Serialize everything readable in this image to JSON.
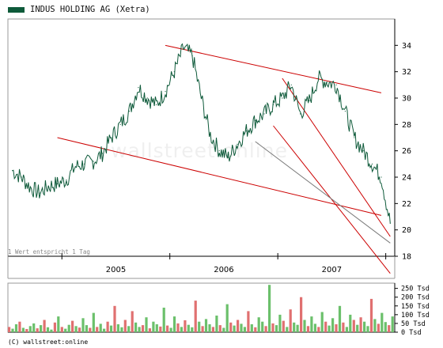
{
  "legend": {
    "label": "INDUS HOLDING AG (Xetra)",
    "color": "#0e5a3a"
  },
  "footnote": "1 Wert entspricht 1 Tag",
  "watermark": "wallstreet online",
  "copyright": "(C) wallstreet:online",
  "chart_data": [
    {
      "type": "line",
      "title": "INDUS HOLDING AG (Xetra)",
      "series": [
        {
          "name": "INDUS HOLDING AG (Xetra)",
          "x": [
            "2004-07",
            "2004-08",
            "2004-09",
            "2004-10",
            "2004-11",
            "2004-12",
            "2005-01",
            "2005-02",
            "2005-03",
            "2005-04",
            "2005-05",
            "2005-06",
            "2005-07",
            "2005-08",
            "2005-09",
            "2005-10",
            "2005-11",
            "2005-12",
            "2006-01",
            "2006-02",
            "2006-03",
            "2006-04",
            "2006-05",
            "2006-06",
            "2006-07",
            "2006-08",
            "2006-09",
            "2006-10",
            "2006-11",
            "2006-12",
            "2007-01",
            "2007-02",
            "2007-03",
            "2007-04",
            "2007-05",
            "2007-06",
            "2007-07",
            "2007-08",
            "2007-09",
            "2007-10",
            "2007-11",
            "2007-12",
            "2008-01"
          ],
          "values": [
            24.5,
            24.0,
            23.2,
            22.8,
            23.3,
            23.5,
            23.8,
            24.8,
            25.0,
            25.2,
            25.8,
            27.0,
            28.0,
            29.0,
            30.8,
            30.0,
            29.5,
            30.5,
            32.0,
            33.8,
            33.2,
            30.0,
            27.2,
            26.0,
            25.5,
            26.5,
            27.5,
            28.3,
            28.8,
            29.5,
            30.0,
            31.0,
            28.8,
            29.8,
            31.5,
            31.2,
            31.0,
            29.0,
            27.0,
            26.0,
            25.0,
            24.0,
            20.5
          ]
        }
      ],
      "xticks": [
        "2005",
        "2006",
        "2007"
      ],
      "yticks": [
        18,
        20,
        22,
        24,
        26,
        28,
        30,
        32,
        34
      ],
      "ylim": [
        18,
        36
      ],
      "axis_side": "right",
      "grid": false,
      "trendlines": [
        {
          "color": "#cc0000",
          "from": [
            "2004-12",
            27.0
          ],
          "to": [
            "2007-12",
            21.1
          ]
        },
        {
          "color": "#cc0000",
          "from": [
            "2005-12",
            34.0
          ],
          "to": [
            "2007-12",
            30.4
          ]
        },
        {
          "color": "#cc0000",
          "from": [
            "2007-01",
            31.5
          ],
          "to": [
            "2008-01",
            19.5
          ]
        },
        {
          "color": "#cc0000",
          "from": [
            "2006-12",
            27.9
          ],
          "to": [
            "2008-01",
            16.7
          ]
        },
        {
          "color": "#7a7a7a",
          "from": [
            "2006-10",
            26.7
          ],
          "to": [
            "2008-01",
            19.0
          ]
        }
      ]
    },
    {
      "type": "bar",
      "title": "",
      "yticks": [
        0,
        50,
        100,
        150,
        200,
        250
      ],
      "ytick_labels": [
        "0 Tsd",
        "50 Tsd",
        "100 Tsd",
        "150 Tsd",
        "200 Tsd",
        "250 Tsd"
      ],
      "ylim": [
        0,
        280
      ],
      "colors": {
        "up": "#6bc06b",
        "down": "#e07070"
      },
      "values": [
        30,
        20,
        45,
        60,
        25,
        18,
        35,
        50,
        22,
        40,
        70,
        28,
        15,
        55,
        90,
        30,
        20,
        42,
        65,
        35,
        26,
        80,
        40,
        25,
        110,
        30,
        48,
        20,
        60,
        38,
        150,
        45,
        28,
        70,
        35,
        120,
        55,
        30,
        40,
        85,
        22,
        60,
        45,
        32,
        140,
        38,
        25,
        90,
        50,
        30,
        68,
        42,
        28,
        180,
        60,
        35,
        75,
        45,
        30,
        95,
        40,
        25,
        160,
        55,
        38,
        70,
        48,
        30,
        120,
        45,
        28,
        85,
        60,
        35,
        270,
        50,
        40,
        100,
        65,
        30,
        130,
        55,
        42,
        200,
        70,
        35,
        90,
        48,
        30,
        115,
        60,
        38,
        80,
        45,
        150,
        55,
        30,
        100,
        70,
        42,
        85,
        60,
        35,
        190,
        75,
        48,
        110,
        58,
        40,
        90
      ]
    }
  ]
}
